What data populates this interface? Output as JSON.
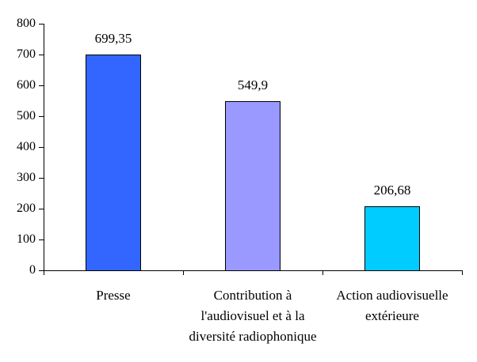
{
  "chart_data": {
    "type": "bar",
    "title": "",
    "xlabel": "",
    "ylabel": "",
    "categories": [
      "Presse",
      "Contribution à l'audiovisuel et à la diversité radiophonique",
      "Action audiovisuelle extérieure"
    ],
    "category_label_lines": [
      [
        "Presse"
      ],
      [
        "Contribution à",
        "l'audiovisuel et à la",
        "diversité radiophonique"
      ],
      [
        "Action audiovisuelle",
        "extérieure"
      ]
    ],
    "values": [
      699.35,
      549.9,
      206.68
    ],
    "value_labels": [
      "699,35",
      "549,9",
      "206,68"
    ],
    "bar_colors": [
      "#3366ff",
      "#9999ff",
      "#00ccff"
    ],
    "bar_border_color": "#000000",
    "axis_color": "#000000",
    "text_color": "#000000",
    "background_color": "#ffffff",
    "ylim": [
      0,
      800
    ],
    "y_ticks": [
      "800",
      "700",
      "600",
      "500",
      "400",
      "300",
      "200",
      "100",
      "0"
    ],
    "grid": false,
    "legend": "none"
  }
}
